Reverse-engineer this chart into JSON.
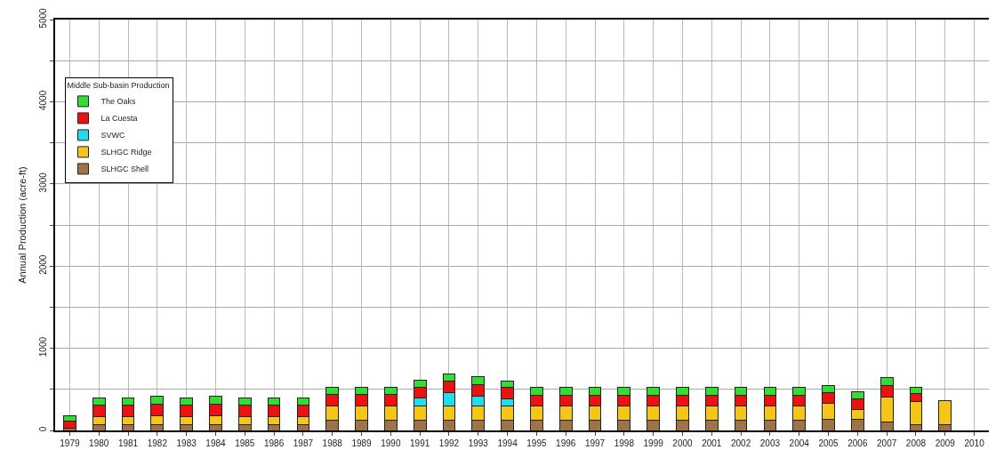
{
  "chart_data": {
    "type": "bar",
    "stacked": true,
    "ylabel": "Annual Production (acre-ft)",
    "legend_title": "Middle Sub-basin Production",
    "legend": "top left",
    "grid": true,
    "categories": [
      "1979",
      "1980",
      "1981",
      "1982",
      "1983",
      "1984",
      "1985",
      "1986",
      "1987",
      "1988",
      "1989",
      "1990",
      "1991",
      "1992",
      "1993",
      "1994",
      "1995",
      "1996",
      "1997",
      "1998",
      "1999",
      "2000",
      "2001",
      "2002",
      "2003",
      "2004",
      "2005",
      "2006",
      "2007",
      "2008",
      "2009",
      "2010"
    ],
    "ylim": [
      0,
      5000
    ],
    "yticks": [
      0,
      {
        "value": 500,
        "label": null
      },
      1000,
      {
        "value": 1500,
        "label": null
      },
      2000,
      {
        "value": 2500,
        "label": null
      },
      3000,
      {
        "value": 3500,
        "label": null
      },
      4000,
      {
        "value": 4500,
        "label": null
      },
      5000
    ],
    "series": [
      {
        "name": "SLHGC Shell",
        "color": "#9c7448",
        "values": [
          30,
          70,
          70,
          70,
          70,
          70,
          70,
          70,
          70,
          120,
          120,
          120,
          120,
          120,
          120,
          120,
          120,
          120,
          120,
          120,
          120,
          120,
          120,
          120,
          120,
          120,
          130,
          140,
          100,
          70,
          70,
          null
        ]
      },
      {
        "name": "SLHGC Ridge",
        "color": "#f5c518",
        "values": [
          null,
          100,
          100,
          110,
          100,
          110,
          100,
          100,
          100,
          180,
          180,
          180,
          180,
          180,
          180,
          180,
          180,
          180,
          180,
          180,
          180,
          180,
          180,
          180,
          180,
          180,
          200,
          110,
          310,
          280,
          290,
          null
        ]
      },
      {
        "name": "SVWC",
        "color": "#22ddee",
        "values": [
          null,
          null,
          null,
          null,
          null,
          null,
          null,
          null,
          null,
          null,
          null,
          null,
          100,
          160,
          120,
          80,
          null,
          null,
          null,
          null,
          null,
          null,
          null,
          null,
          null,
          null,
          null,
          null,
          null,
          null,
          null,
          null
        ]
      },
      {
        "name": "La Cuesta",
        "color": "#ee1111",
        "values": [
          80,
          140,
          140,
          140,
          140,
          140,
          140,
          140,
          140,
          140,
          140,
          140,
          120,
          140,
          140,
          140,
          130,
          130,
          130,
          130,
          130,
          130,
          130,
          130,
          130,
          130,
          130,
          130,
          140,
          100,
          null,
          null
        ]
      },
      {
        "name": "The Oaks",
        "color": "#33dd33",
        "values": [
          70,
          80,
          80,
          100,
          80,
          100,
          80,
          80,
          80,
          80,
          80,
          80,
          90,
          90,
          90,
          80,
          90,
          90,
          90,
          90,
          90,
          90,
          90,
          90,
          90,
          90,
          90,
          90,
          90,
          80,
          null,
          null
        ]
      }
    ]
  }
}
